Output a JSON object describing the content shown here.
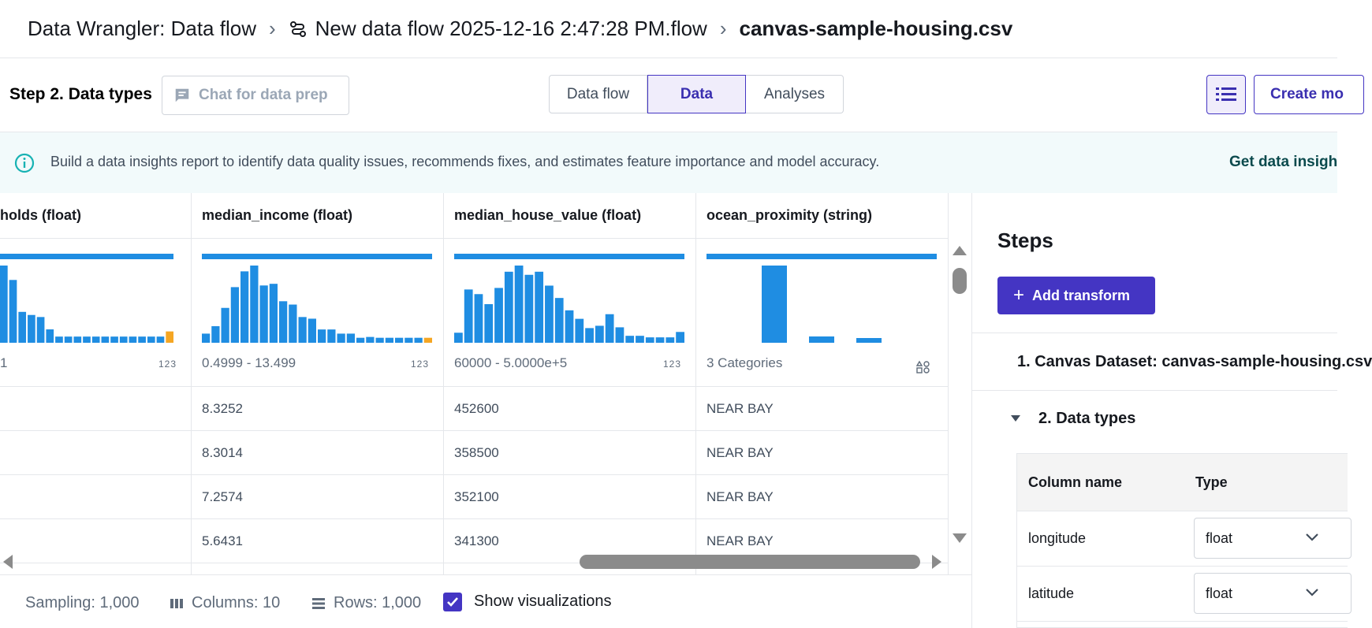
{
  "breadcrumb": {
    "items": [
      "Data Wrangler: Data flow",
      "New data flow 2025-12-16 2:47:28 PM.flow",
      "canvas-sample-housing.csv"
    ]
  },
  "toolbar": {
    "step_title": "Step 2. Data types",
    "chat_placeholder": "Chat for data prep",
    "tabs": [
      "Data flow",
      "Data",
      "Analyses"
    ],
    "active_tab": "Data",
    "create_label": "Create mo"
  },
  "banner": {
    "text": "Build a data insights report to identify data quality issues, recommends fixes, and estimates feature importance and model accuracy.",
    "link": "Get data insigh"
  },
  "grid": {
    "columns": [
      {
        "header": "holds (float)",
        "range": "1",
        "kind": "123",
        "hist": [
          75,
          61,
          30,
          27,
          25,
          13,
          6,
          6,
          6,
          6,
          6,
          6,
          6,
          6,
          6,
          6,
          6,
          6,
          11
        ],
        "hist_max": 75,
        "cells": [
          "",
          "",
          "",
          ""
        ]
      },
      {
        "header": "median_income (float)",
        "range": "0.4999 - 13.499",
        "kind": "123",
        "hist": [
          11,
          20,
          42,
          67,
          86,
          93,
          69,
          71,
          50,
          46,
          31,
          29,
          16,
          16,
          11,
          11,
          6,
          7,
          6,
          6,
          6,
          6,
          6,
          6
        ],
        "hist_max": 93,
        "cells": [
          "8.3252",
          "8.3014",
          "7.2574",
          "5.6431"
        ]
      },
      {
        "header": "median_house_value (float)",
        "range": "60000 - 5.0000e+5",
        "kind": "123",
        "hist": [
          13,
          69,
          63,
          50,
          71,
          92,
          100,
          88,
          92,
          74,
          58,
          42,
          31,
          19,
          22,
          37,
          20,
          9,
          9,
          7,
          7,
          7,
          14
        ],
        "hist_max": 100,
        "cells": [
          "452600",
          "358500",
          "352100",
          "341300"
        ]
      },
      {
        "header": "ocean_proximity (string)",
        "range": "3 Categories",
        "kind": "categorical",
        "categories": [
          98,
          8,
          6
        ],
        "hist_max": 98,
        "cells": [
          "NEAR BAY",
          "NEAR BAY",
          "NEAR BAY",
          "NEAR BAY"
        ]
      }
    ]
  },
  "footer": {
    "sampling": "Sampling: 1,000",
    "columns": "Columns: 10",
    "rows": "Rows: 1,000",
    "show_viz": "Show visualizations"
  },
  "steps": {
    "title": "Steps",
    "add_transform": "Add transform",
    "step1": "1. Canvas Dataset: canvas-sample-housing.csv",
    "step2": "2. Data types",
    "table_headers": [
      "Column name",
      "Type"
    ],
    "rows": [
      {
        "name": "longitude",
        "type": "float"
      },
      {
        "name": "latitude",
        "type": "float"
      }
    ]
  },
  "colors": {
    "accent": "#4435c3",
    "bar": "#1f8de2",
    "outlier": "#f5a623"
  }
}
